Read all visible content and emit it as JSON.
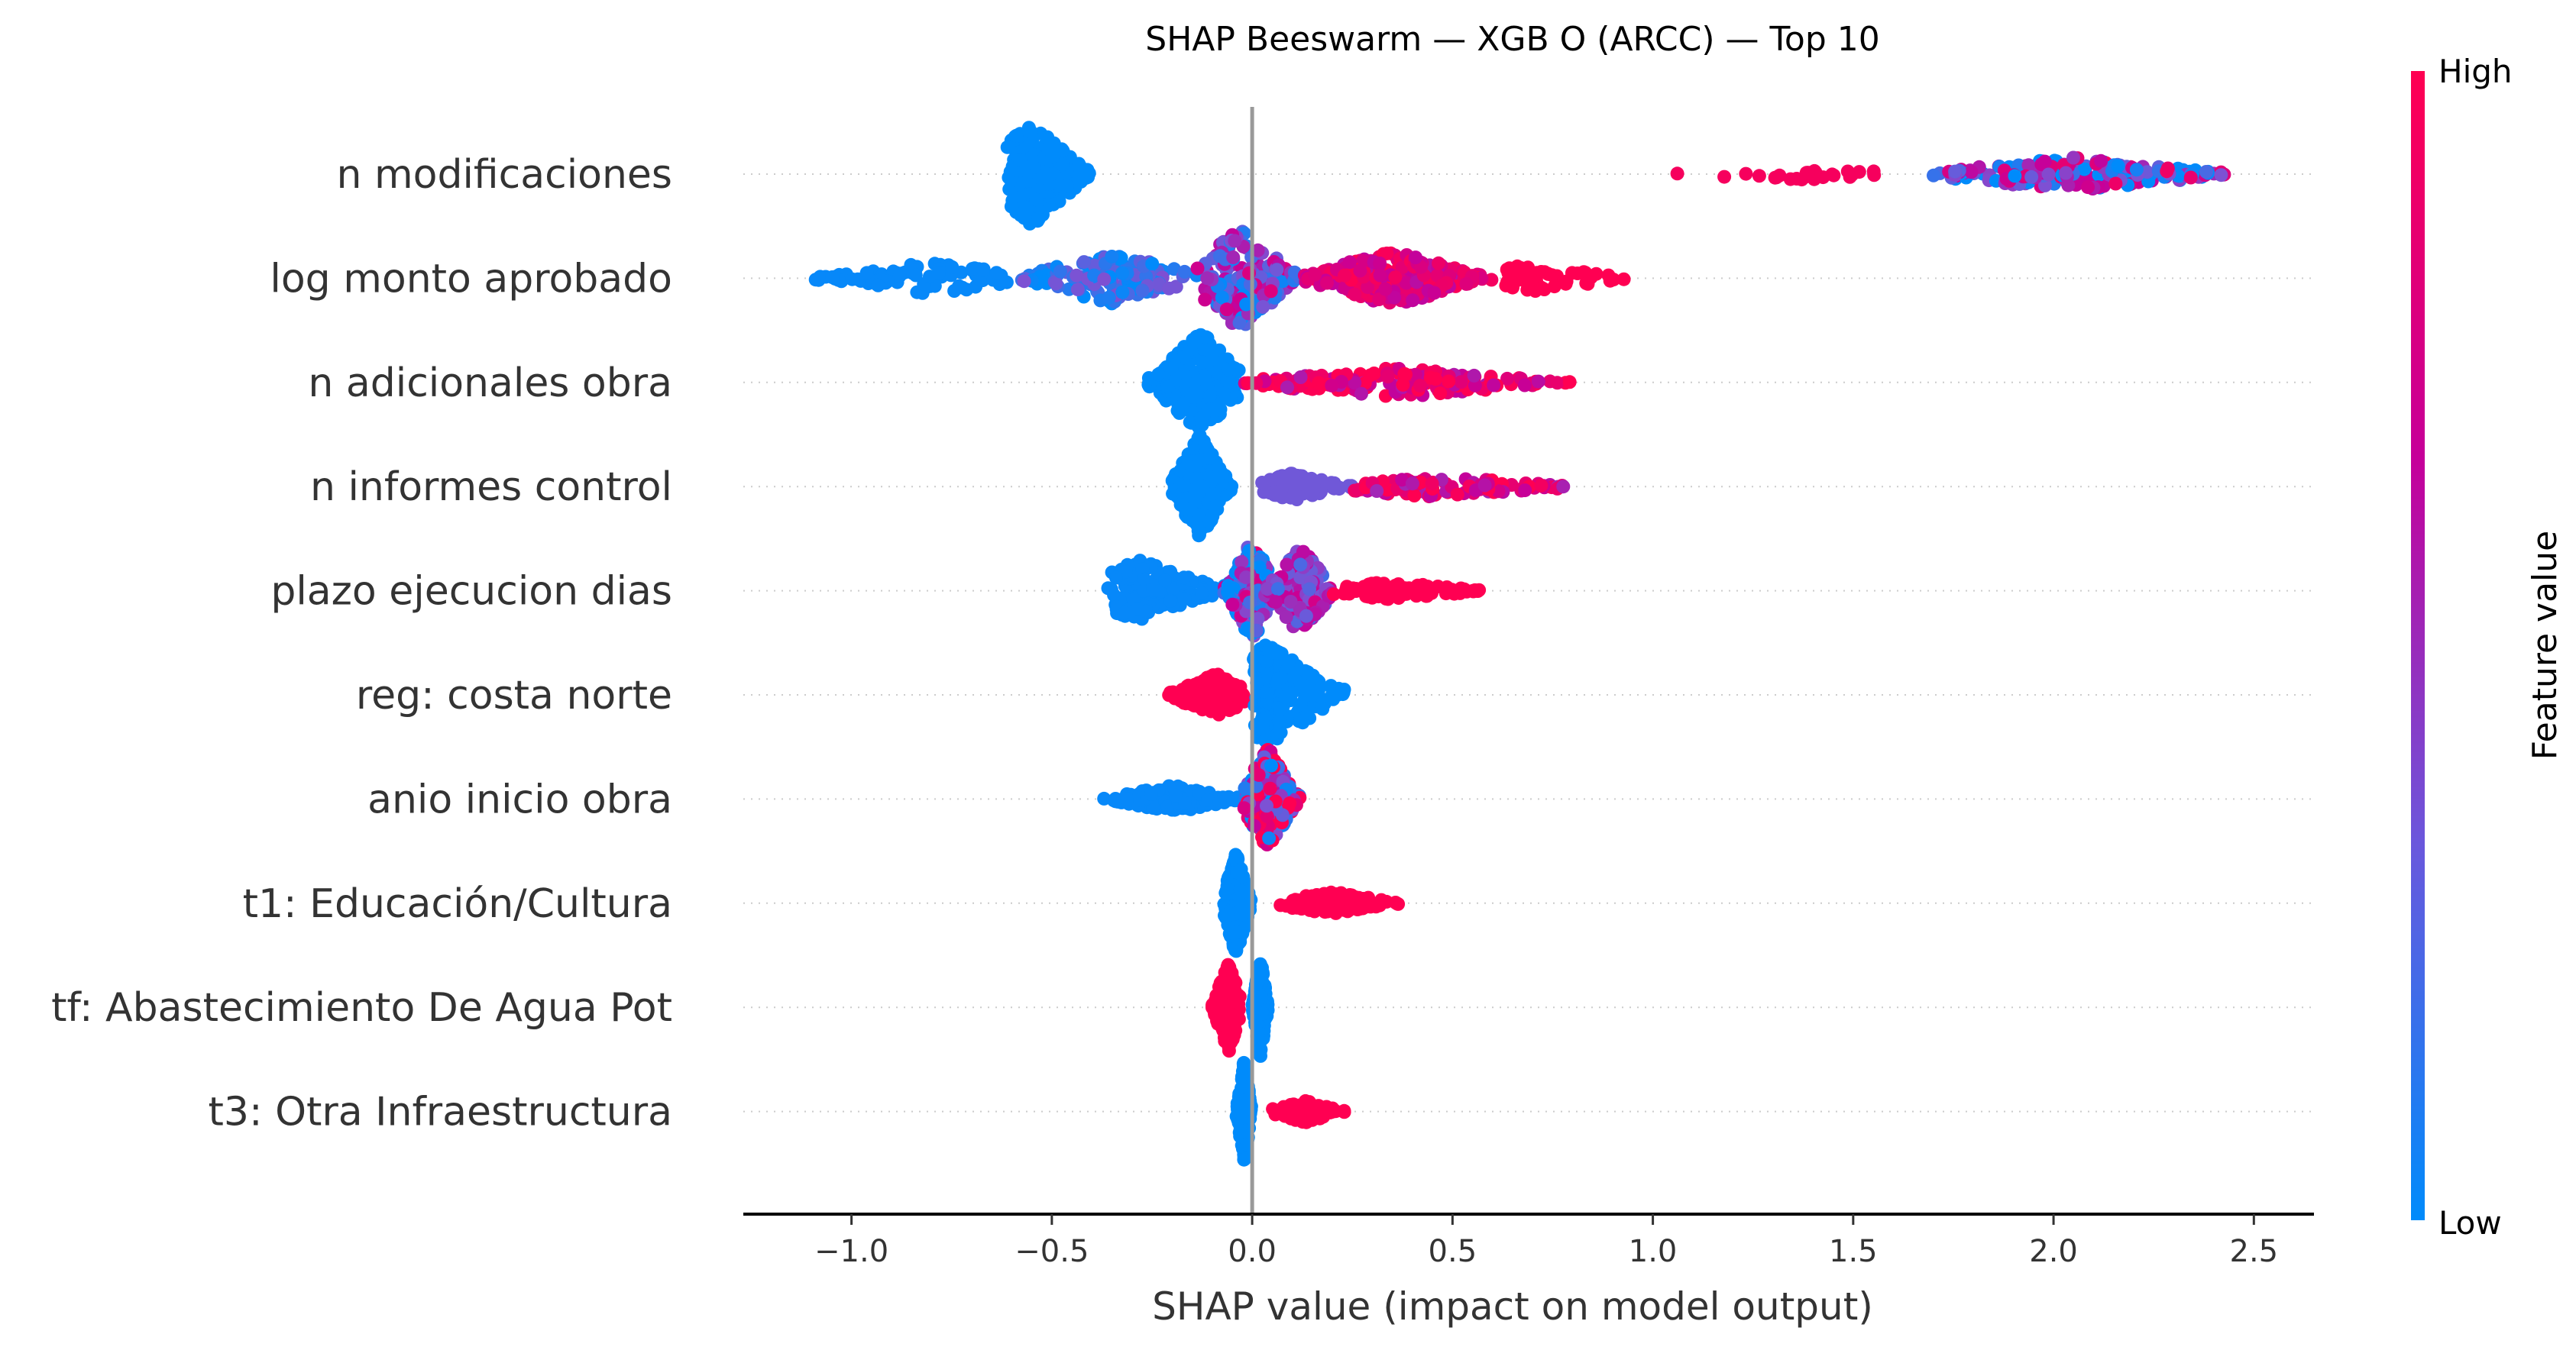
{
  "chart_data": {
    "type": "scatter",
    "subtype": "shap-beeswarm",
    "title": "SHAP Beeswarm — XGB O (ARCC) — Top 10",
    "xlabel": "SHAP value (impact on model output)",
    "ylabel": "",
    "xlim": [
      -1.27,
      2.65
    ],
    "xticks": [
      -1.0,
      -0.5,
      0.0,
      0.5,
      1.0,
      1.5,
      2.0,
      2.5
    ],
    "xtick_labels": [
      "−1.0",
      "−0.5",
      "0.0",
      "0.5",
      "1.0",
      "1.5",
      "2.0",
      "2.5"
    ],
    "zero_line": 0.0,
    "grid": "dotted horizontal per feature",
    "colorbar": {
      "label": "Feature value",
      "high_label": "High",
      "low_label": "Low",
      "colors": [
        "#008bfb",
        "#7c52d4",
        "#c5009a",
        "#ff0052"
      ],
      "placement": "right"
    },
    "features": [
      {
        "name": "n modificaciones",
        "clusters": [
          {
            "min": -0.62,
            "max": -0.4,
            "peak": -0.55,
            "n": 220,
            "spread": 1.0,
            "color_value": 0.0
          },
          {
            "min": 1.03,
            "max": 1.65,
            "peak": 1.35,
            "n": 25,
            "spread": 0.08,
            "color_value": 0.95
          },
          {
            "min": 1.7,
            "max": 2.47,
            "peak": 2.05,
            "n": 200,
            "spread": 0.25,
            "color_value": 0.35,
            "color_jitter": 0.6
          }
        ]
      },
      {
        "name": "log monto aprobado",
        "clusters": [
          {
            "min": -1.1,
            "max": -0.6,
            "peak": -0.8,
            "n": 80,
            "spread": 0.25,
            "color_value": 0.02
          },
          {
            "min": -0.6,
            "max": -0.15,
            "peak": -0.35,
            "n": 150,
            "spread": 0.45,
            "color_value": 0.15,
            "color_jitter": 0.2
          },
          {
            "min": -0.15,
            "max": 0.12,
            "peak": -0.03,
            "n": 180,
            "spread": 1.0,
            "color_value": 0.4,
            "color_jitter": 0.4
          },
          {
            "min": 0.12,
            "max": 0.6,
            "peak": 0.35,
            "n": 220,
            "spread": 0.5,
            "color_value": 0.8,
            "color_jitter": 0.2
          },
          {
            "min": 0.6,
            "max": 0.95,
            "peak": 0.7,
            "n": 60,
            "spread": 0.2,
            "color_value": 1.0
          }
        ]
      },
      {
        "name": "n adicionales obra",
        "clusters": [
          {
            "min": -0.26,
            "max": -0.03,
            "peak": -0.13,
            "n": 220,
            "spread": 1.0,
            "color_value": 0.0
          },
          {
            "min": -0.03,
            "max": 0.8,
            "peak": 0.36,
            "n": 180,
            "spread": 0.22,
            "color_value": 0.85,
            "color_jitter": 0.3
          }
        ]
      },
      {
        "name": "n informes control",
        "clusters": [
          {
            "min": -0.2,
            "max": -0.05,
            "peak": -0.13,
            "n": 220,
            "spread": 1.0,
            "color_value": 0.0
          },
          {
            "min": 0.02,
            "max": 0.25,
            "peak": 0.1,
            "n": 120,
            "spera": 0,
            "spread": 0.2,
            "color_value": 0.3
          },
          {
            "min": 0.25,
            "max": 0.85,
            "peak": 0.45,
            "n": 120,
            "spread": 0.12,
            "color_value": 0.8,
            "color_jitter": 0.3
          }
        ]
      },
      {
        "name": "plazo ejecucion dias",
        "clusters": [
          {
            "min": -0.36,
            "max": -0.05,
            "peak": -0.28,
            "n": 140,
            "spread": 0.55,
            "color_value": 0.02
          },
          {
            "min": -0.07,
            "max": 0.05,
            "peak": 0.0,
            "n": 170,
            "spread": 1.0,
            "color_value": 0.25,
            "color_jitter": 0.6
          },
          {
            "min": 0.03,
            "max": 0.2,
            "peak": 0.12,
            "n": 160,
            "spread": 0.85,
            "color_value": 0.45,
            "color_jitter": 0.3
          },
          {
            "min": 0.2,
            "max": 0.59,
            "peak": 0.35,
            "n": 90,
            "spread": 0.1,
            "color_value": 1.0
          }
        ]
      },
      {
        "name": "reg: costa norte",
        "clusters": [
          {
            "min": -0.22,
            "max": -0.01,
            "peak": -0.09,
            "n": 160,
            "spread": 0.35,
            "color_value": 1.0
          },
          {
            "min": 0.0,
            "max": 0.23,
            "peak": 0.04,
            "n": 220,
            "spread": 1.0,
            "color_value": 0.0
          }
        ]
      },
      {
        "name": "anio inicio obra",
        "clusters": [
          {
            "min": -0.38,
            "max": -0.02,
            "peak": -0.2,
            "n": 150,
            "spread": 0.2,
            "color_value": 0.02
          },
          {
            "min": -0.02,
            "max": 0.12,
            "peak": 0.04,
            "n": 220,
            "spread": 1.0,
            "color_value": 0.6,
            "color_jitter": 0.7
          }
        ]
      },
      {
        "name": "t1: Educación/Cultura",
        "clusters": [
          {
            "min": -0.07,
            "max": 0.0,
            "peak": -0.04,
            "n": 220,
            "spread": 1.0,
            "color_value": 0.0
          },
          {
            "min": 0.07,
            "max": 0.37,
            "peak": 0.2,
            "n": 120,
            "spread": 0.15,
            "color_value": 1.0
          }
        ]
      },
      {
        "name": "tf: Abastecimiento De Agua Pot",
        "clusters": [
          {
            "min": -0.1,
            "max": -0.03,
            "peak": -0.06,
            "n": 140,
            "spread": 0.9,
            "color_value": 1.0
          },
          {
            "min": 0.0,
            "max": 0.04,
            "peak": 0.02,
            "n": 220,
            "spread": 1.0,
            "color_value": 0.0
          }
        ]
      },
      {
        "name": "t3: Otra Infraestructura",
        "clusters": [
          {
            "min": -0.04,
            "max": 0.0,
            "peak": -0.02,
            "n": 200,
            "spread": 1.0,
            "color_value": 0.0
          },
          {
            "min": 0.04,
            "max": 0.23,
            "peak": 0.13,
            "n": 110,
            "spread": 0.15,
            "color_value": 1.0
          }
        ]
      }
    ]
  }
}
